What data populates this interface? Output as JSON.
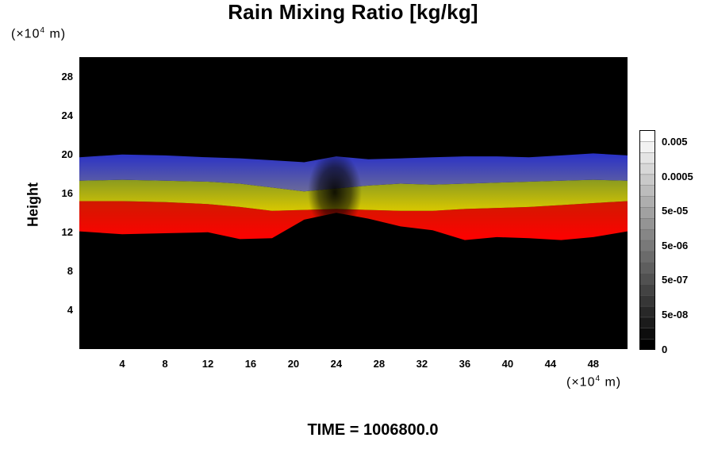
{
  "chart_data": {
    "type": "heatmap",
    "title": "Rain Mixing Ratio [kg/kg]",
    "ylabel": "Height",
    "xlabel": "",
    "x_unit": "(×10",
    "y_unit": "(×10",
    "unit_exponent": "4",
    "unit_suffix": " m)",
    "x_ticks": [
      4,
      8,
      12,
      16,
      20,
      24,
      28,
      32,
      36,
      40,
      44,
      48
    ],
    "y_ticks": [
      4,
      8,
      12,
      16,
      20,
      24,
      28
    ],
    "xlim": [
      0,
      51.2
    ],
    "ylim": [
      0,
      30
    ],
    "grid": false,
    "colorbar_labels": [
      "0.005",
      "0.0005",
      "5e-05",
      "5e-06",
      "5e-07",
      "5e-08",
      "0"
    ],
    "layers": [
      {
        "name": "red",
        "color": "#e00000",
        "x": [
          0,
          4,
          8,
          12,
          15,
          18,
          21,
          24,
          27,
          30,
          33,
          36,
          39,
          42,
          45,
          48,
          51.2
        ],
        "bottom": [
          12.1,
          11.8,
          11.9,
          12.0,
          11.3,
          11.4,
          13.3,
          14.0,
          13.4,
          12.6,
          12.2,
          11.2,
          11.5,
          11.4,
          11.2,
          11.5,
          12.1
        ],
        "top": [
          15.2,
          15.2,
          15.1,
          14.9,
          14.6,
          14.2,
          14.3,
          14.4,
          14.3,
          14.2,
          14.2,
          14.4,
          14.5,
          14.6,
          14.8,
          15.0,
          15.2
        ]
      },
      {
        "name": "yellow",
        "color": "#c8c800",
        "x": [
          0,
          4,
          8,
          12,
          15,
          18,
          21,
          24,
          27,
          30,
          33,
          36,
          39,
          42,
          45,
          48,
          51.2
        ],
        "bottom": [
          15.2,
          15.2,
          15.1,
          14.9,
          14.6,
          14.2,
          14.3,
          14.4,
          14.3,
          14.2,
          14.2,
          14.4,
          14.5,
          14.6,
          14.8,
          15.0,
          15.2
        ],
        "top": [
          17.3,
          17.4,
          17.3,
          17.2,
          17.0,
          16.6,
          16.2,
          16.5,
          16.8,
          17.0,
          16.9,
          17.0,
          17.1,
          17.2,
          17.3,
          17.4,
          17.3
        ]
      },
      {
        "name": "blue",
        "color": "#2a32c8",
        "x": [
          0,
          4,
          8,
          12,
          15,
          18,
          21,
          24,
          27,
          30,
          33,
          36,
          39,
          42,
          45,
          48,
          51.2
        ],
        "bottom": [
          17.3,
          17.4,
          17.3,
          17.2,
          17.0,
          16.6,
          16.2,
          16.5,
          16.8,
          17.0,
          16.9,
          17.0,
          17.1,
          17.2,
          17.3,
          17.4,
          17.3
        ],
        "top": [
          19.7,
          20.0,
          19.9,
          19.7,
          19.6,
          19.4,
          19.2,
          19.8,
          19.5,
          19.6,
          19.7,
          19.8,
          19.8,
          19.7,
          19.9,
          20.1,
          19.9
        ]
      }
    ]
  },
  "time_label": "TIME = 1006800.0",
  "colors": {
    "background": "#000000",
    "red": "#e00000",
    "yellow": "#c8c800",
    "blue": "#2a32c8"
  }
}
